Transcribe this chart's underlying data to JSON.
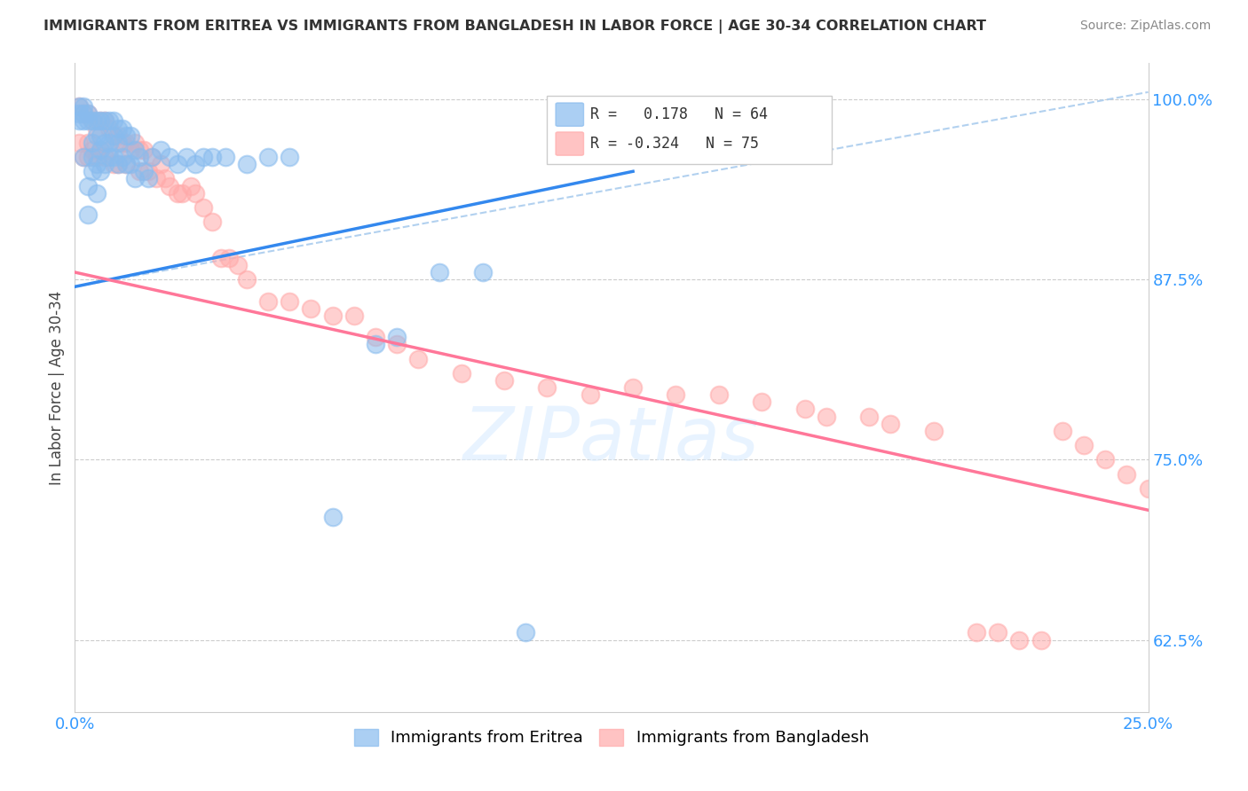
{
  "title": "IMMIGRANTS FROM ERITREA VS IMMIGRANTS FROM BANGLADESH IN LABOR FORCE | AGE 30-34 CORRELATION CHART",
  "source": "Source: ZipAtlas.com",
  "ylabel": "In Labor Force | Age 30-34",
  "xlim": [
    0.0,
    0.25
  ],
  "ylim": [
    0.575,
    1.025
  ],
  "xtick_positions": [
    0.0,
    0.05,
    0.1,
    0.15,
    0.2,
    0.25
  ],
  "xticklabels": [
    "0.0%",
    "",
    "",
    "",
    "",
    "25.0%"
  ],
  "yticks_right": [
    0.625,
    0.75,
    0.875,
    1.0
  ],
  "ytick_labels_right": [
    "62.5%",
    "75.0%",
    "87.5%",
    "100.0%"
  ],
  "blue_R": 0.178,
  "blue_N": 64,
  "pink_R": -0.324,
  "pink_N": 75,
  "blue_color": "#88BBEE",
  "pink_color": "#FFAAAA",
  "blue_line_color": "#3388EE",
  "pink_line_color": "#FF7799",
  "dash_line_color": "#AACCEE",
  "legend_blue_label": "Immigrants from Eritrea",
  "legend_pink_label": "Immigrants from Bangladesh",
  "blue_scatter_x": [
    0.001,
    0.001,
    0.001,
    0.002,
    0.002,
    0.002,
    0.002,
    0.003,
    0.003,
    0.003,
    0.003,
    0.004,
    0.004,
    0.004,
    0.004,
    0.005,
    0.005,
    0.005,
    0.005,
    0.006,
    0.006,
    0.006,
    0.006,
    0.007,
    0.007,
    0.007,
    0.008,
    0.008,
    0.008,
    0.009,
    0.009,
    0.009,
    0.01,
    0.01,
    0.01,
    0.011,
    0.011,
    0.012,
    0.012,
    0.013,
    0.013,
    0.014,
    0.014,
    0.015,
    0.016,
    0.017,
    0.018,
    0.02,
    0.022,
    0.024,
    0.026,
    0.028,
    0.03,
    0.032,
    0.035,
    0.04,
    0.045,
    0.05,
    0.06,
    0.07,
    0.075,
    0.085,
    0.095,
    0.105
  ],
  "blue_scatter_y": [
    0.995,
    0.99,
    0.985,
    0.995,
    0.99,
    0.985,
    0.96,
    0.99,
    0.985,
    0.94,
    0.92,
    0.985,
    0.97,
    0.96,
    0.95,
    0.985,
    0.975,
    0.955,
    0.935,
    0.985,
    0.975,
    0.965,
    0.95,
    0.985,
    0.97,
    0.955,
    0.985,
    0.97,
    0.96,
    0.985,
    0.975,
    0.96,
    0.98,
    0.97,
    0.955,
    0.98,
    0.96,
    0.975,
    0.955,
    0.975,
    0.955,
    0.965,
    0.945,
    0.96,
    0.95,
    0.945,
    0.96,
    0.965,
    0.96,
    0.955,
    0.96,
    0.955,
    0.96,
    0.96,
    0.96,
    0.955,
    0.96,
    0.96,
    0.71,
    0.83,
    0.835,
    0.88,
    0.88,
    0.63
  ],
  "pink_scatter_x": [
    0.001,
    0.001,
    0.002,
    0.002,
    0.003,
    0.003,
    0.003,
    0.004,
    0.004,
    0.005,
    0.005,
    0.006,
    0.006,
    0.007,
    0.007,
    0.008,
    0.008,
    0.009,
    0.009,
    0.01,
    0.01,
    0.011,
    0.012,
    0.012,
    0.013,
    0.014,
    0.015,
    0.015,
    0.016,
    0.017,
    0.018,
    0.019,
    0.02,
    0.021,
    0.022,
    0.024,
    0.025,
    0.027,
    0.028,
    0.03,
    0.032,
    0.034,
    0.036,
    0.038,
    0.04,
    0.045,
    0.05,
    0.055,
    0.06,
    0.065,
    0.07,
    0.075,
    0.08,
    0.09,
    0.1,
    0.11,
    0.12,
    0.13,
    0.14,
    0.15,
    0.16,
    0.17,
    0.175,
    0.185,
    0.19,
    0.2,
    0.21,
    0.215,
    0.22,
    0.225,
    0.23,
    0.235,
    0.24,
    0.245,
    0.25
  ],
  "pink_scatter_y": [
    0.995,
    0.97,
    0.99,
    0.96,
    0.99,
    0.97,
    0.96,
    0.985,
    0.965,
    0.98,
    0.96,
    0.985,
    0.965,
    0.985,
    0.96,
    0.98,
    0.965,
    0.975,
    0.955,
    0.975,
    0.955,
    0.97,
    0.97,
    0.955,
    0.965,
    0.97,
    0.965,
    0.95,
    0.965,
    0.95,
    0.96,
    0.945,
    0.955,
    0.945,
    0.94,
    0.935,
    0.935,
    0.94,
    0.935,
    0.925,
    0.915,
    0.89,
    0.89,
    0.885,
    0.875,
    0.86,
    0.86,
    0.855,
    0.85,
    0.85,
    0.835,
    0.83,
    0.82,
    0.81,
    0.805,
    0.8,
    0.795,
    0.8,
    0.795,
    0.795,
    0.79,
    0.785,
    0.78,
    0.78,
    0.775,
    0.77,
    0.63,
    0.63,
    0.625,
    0.625,
    0.77,
    0.76,
    0.75,
    0.74,
    0.73
  ],
  "blue_trendline_x": [
    0.0,
    0.13
  ],
  "blue_trendline_y": [
    0.87,
    0.95
  ],
  "pink_trendline_x": [
    0.0,
    0.25
  ],
  "pink_trendline_y": [
    0.88,
    0.715
  ],
  "dash_line_x": [
    0.0,
    0.25
  ],
  "dash_line_y": [
    0.87,
    1.005
  ]
}
